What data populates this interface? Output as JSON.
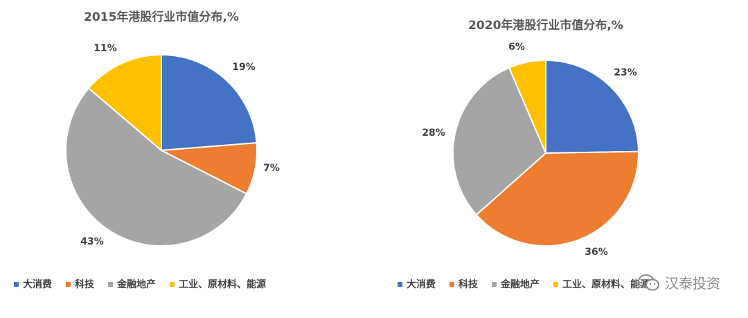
{
  "chart_data": [
    {
      "type": "pie",
      "title": "2015年港股行业市值分布,%",
      "categories": [
        "大消费",
        "科技",
        "金融地产",
        "工业、原材料、能源"
      ],
      "values": [
        19,
        7,
        43,
        11
      ],
      "data_labels": [
        "19%",
        "7%",
        "43%",
        "11%"
      ],
      "colors": [
        "#4472C4",
        "#ED7D31",
        "#A5A5A5",
        "#FFC000"
      ],
      "legend_position": "bottom",
      "start_angle_deg": 0,
      "direction": "clockwise"
    },
    {
      "type": "pie",
      "title": "2020年港股行业市值分布,%",
      "categories": [
        "大消费",
        "科技",
        "金融地产",
        "工业、原材料、能源"
      ],
      "values": [
        23,
        36,
        28,
        6
      ],
      "data_labels": [
        "23%",
        "36%",
        "28%",
        "6%"
      ],
      "colors": [
        "#4472C4",
        "#ED7D31",
        "#A5A5A5",
        "#FFC000"
      ],
      "legend_position": "bottom",
      "start_angle_deg": 0,
      "direction": "clockwise"
    }
  ],
  "watermark": {
    "icon": "wechat-icon",
    "text": "汉泰投资"
  }
}
